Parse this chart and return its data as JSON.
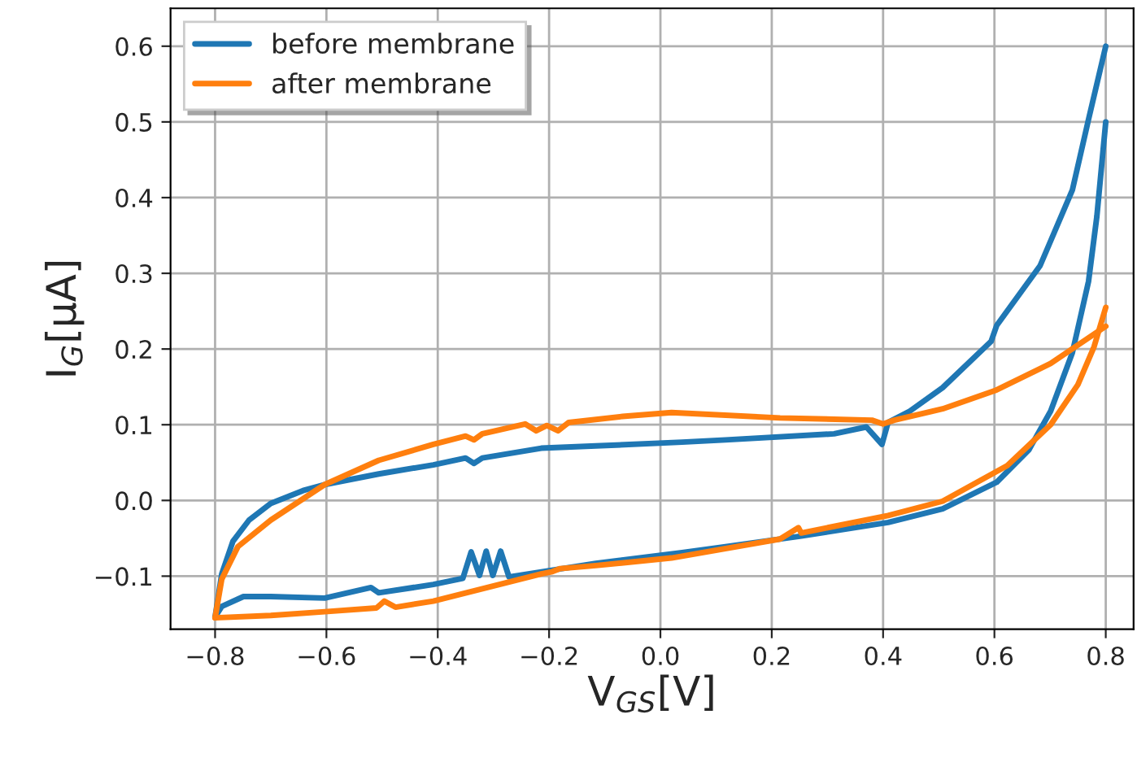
{
  "chart_data": {
    "type": "line",
    "xlabel": "V$_{GS}$[V]",
    "ylabel": "I$_{G}$[μA]",
    "xlim": [
      -0.88,
      0.85
    ],
    "ylim": [
      -0.17,
      0.65
    ],
    "xticks": [
      {
        "value": -0.8,
        "label": "−0.8"
      },
      {
        "value": -0.6,
        "label": "−0.6"
      },
      {
        "value": -0.4,
        "label": "−0.4"
      },
      {
        "value": -0.2,
        "label": "−0.2"
      },
      {
        "value": 0.0,
        "label": "0.0"
      },
      {
        "value": 0.2,
        "label": "0.2"
      },
      {
        "value": 0.4,
        "label": "0.4"
      },
      {
        "value": 0.6,
        "label": "0.6"
      },
      {
        "value": 0.8,
        "label": "0.8"
      }
    ],
    "yticks": [
      {
        "value": -0.1,
        "label": "−0.1"
      },
      {
        "value": 0.0,
        "label": "0.0"
      },
      {
        "value": 0.1,
        "label": "0.1"
      },
      {
        "value": 0.2,
        "label": "0.2"
      },
      {
        "value": 0.3,
        "label": "0.3"
      },
      {
        "value": 0.4,
        "label": "0.4"
      },
      {
        "value": 0.5,
        "label": "0.5"
      },
      {
        "value": 0.6,
        "label": "0.6"
      }
    ],
    "grid": true,
    "legend": "top left",
    "marker": "none",
    "line_style": "solid",
    "series": [
      {
        "name": "before membrane",
        "color": "#1f77b4",
        "x": [
          -0.8,
          -0.788,
          -0.768,
          -0.739,
          -0.7,
          -0.642,
          -0.603,
          -0.506,
          -0.408,
          -0.35,
          -0.335,
          -0.32,
          -0.214,
          -0.116,
          0.039,
          0.117,
          0.312,
          0.37,
          0.398,
          0.409,
          0.448,
          0.507,
          0.594,
          0.604,
          0.682,
          0.74,
          0.769,
          0.8
        ],
        "values": [
          -0.154,
          -0.097,
          -0.054,
          -0.026,
          -0.004,
          0.013,
          0.021,
          0.035,
          0.047,
          0.056,
          0.049,
          0.056,
          0.069,
          0.072,
          0.077,
          0.08,
          0.088,
          0.097,
          0.074,
          0.103,
          0.118,
          0.149,
          0.21,
          0.231,
          0.31,
          0.41,
          0.503,
          0.6
        ]
      },
      {
        "color": "#1f77b4",
        "x": [
          -0.8,
          -0.788,
          -0.749,
          -0.7,
          -0.603,
          -0.52,
          -0.506,
          -0.408,
          -0.355,
          -0.34,
          -0.325,
          -0.313,
          -0.301,
          -0.287,
          -0.272,
          -0.116,
          0.039,
          0.117,
          0.253,
          0.409,
          0.507,
          0.604,
          0.662,
          0.701,
          0.74,
          0.769,
          0.784,
          0.8
        ],
        "values": [
          -0.154,
          -0.14,
          -0.127,
          -0.127,
          -0.129,
          -0.115,
          -0.122,
          -0.111,
          -0.103,
          -0.068,
          -0.099,
          -0.067,
          -0.099,
          -0.067,
          -0.101,
          -0.083,
          -0.069,
          -0.061,
          -0.047,
          -0.029,
          -0.011,
          0.024,
          0.067,
          0.118,
          0.195,
          0.289,
          0.375,
          0.5
        ]
      },
      {
        "name": "after membrane",
        "color": "#ff7f0e",
        "x": [
          -0.8,
          -0.788,
          -0.759,
          -0.7,
          -0.603,
          -0.506,
          -0.408,
          -0.35,
          -0.335,
          -0.32,
          -0.243,
          -0.223,
          -0.204,
          -0.184,
          -0.165,
          -0.068,
          0.02,
          0.215,
          0.38,
          0.4,
          0.42,
          0.507,
          0.604,
          0.701,
          0.8
        ],
        "values": [
          -0.155,
          -0.104,
          -0.061,
          -0.026,
          0.021,
          0.053,
          0.074,
          0.085,
          0.08,
          0.088,
          0.101,
          0.092,
          0.099,
          0.092,
          0.103,
          0.111,
          0.116,
          0.109,
          0.106,
          0.101,
          0.106,
          0.121,
          0.146,
          0.181,
          0.23
        ]
      },
      {
        "color": "#ff7f0e",
        "x": [
          -0.8,
          -0.7,
          -0.603,
          -0.51,
          -0.496,
          -0.476,
          -0.408,
          -0.311,
          -0.214,
          -0.194,
          -0.18,
          -0.116,
          0.02,
          0.215,
          0.248,
          0.253,
          0.409,
          0.507,
          0.623,
          0.701,
          0.75,
          0.779,
          0.8
        ],
        "values": [
          -0.155,
          -0.152,
          -0.147,
          -0.142,
          -0.133,
          -0.141,
          -0.133,
          -0.115,
          -0.097,
          -0.094,
          -0.09,
          -0.086,
          -0.076,
          -0.051,
          -0.036,
          -0.043,
          -0.02,
          -0.001,
          0.046,
          0.1,
          0.153,
          0.203,
          0.255
        ]
      }
    ]
  }
}
